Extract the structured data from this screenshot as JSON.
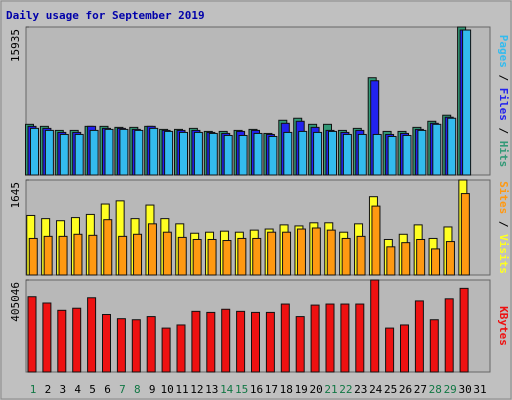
{
  "chart_data": [
    {
      "type": "bar",
      "title": "Daily usage for September 2019",
      "ylim": [
        0,
        15935
      ],
      "yticks": [
        15935
      ],
      "legend_separator": " / ",
      "series": [
        {
          "name": "Hits",
          "color": "#339977",
          "values": [
            5455,
            5237,
            4801,
            4801,
            5237,
            5237,
            5128,
            5128,
            5237,
            4910,
            4910,
            5019,
            4692,
            4692,
            4801,
            4910,
            4474,
            5892,
            6110,
            5455,
            5455,
            4801,
            5019,
            10475,
            4692,
            4692,
            5128,
            5783,
            6437,
            15935,
            0
          ]
        },
        {
          "name": "Files",
          "color": "#2222ee",
          "values": [
            5237,
            5019,
            4583,
            4583,
            5237,
            5019,
            5019,
            4910,
            5237,
            4801,
            4801,
            4801,
            4583,
            4474,
            4692,
            4801,
            4365,
            5565,
            5783,
            5128,
            4801,
            4583,
            4801,
            10148,
            4365,
            4474,
            4910,
            5565,
            6219,
            15608,
            0
          ]
        },
        {
          "name": "Pages",
          "color": "#33bbee",
          "values": [
            5019,
            4801,
            4365,
            4365,
            4801,
            4910,
            4910,
            4801,
            5019,
            4692,
            4583,
            4583,
            4474,
            4256,
            4256,
            4474,
            4147,
            4583,
            4692,
            4583,
            4692,
            4365,
            4365,
            4365,
            4147,
            4256,
            4801,
            5456,
            6110,
            15608,
            0
          ]
        }
      ]
    },
    {
      "type": "bar",
      "ylim": [
        0,
        1645
      ],
      "yticks": [
        1645
      ],
      "legend_separator": " / ",
      "series": [
        {
          "name": "Visits",
          "color": "#ffff22",
          "values": [
            1031,
            976,
            940,
            994,
            1049,
            1229,
            1284,
            976,
            1211,
            976,
            886,
            723,
            741,
            759,
            741,
            777,
            796,
            868,
            850,
            904,
            904,
            741,
            886,
            1356,
            615,
            705,
            868,
            633,
            832,
            1645,
            0
          ]
        },
        {
          "name": "Sites",
          "color": "#ff9911",
          "values": [
            633,
            669,
            669,
            705,
            687,
            958,
            669,
            705,
            886,
            741,
            651,
            615,
            615,
            597,
            633,
            633,
            741,
            741,
            796,
            814,
            777,
            633,
            669,
            1193,
            488,
            560,
            615,
            452,
            579,
            1410,
            0
          ]
        }
      ]
    },
    {
      "type": "bar",
      "ylim": [
        0,
        405046
      ],
      "yticks": [
        405046
      ],
      "categories": [
        "1",
        "2",
        "3",
        "4",
        "5",
        "6",
        "7",
        "8",
        "9",
        "10",
        "11",
        "12",
        "13",
        "14",
        "15",
        "16",
        "17",
        "18",
        "19",
        "20",
        "21",
        "22",
        "23",
        "24",
        "25",
        "26",
        "27",
        "28",
        "29",
        "30",
        "31"
      ],
      "category_colors": [
        "#117744",
        "#000000",
        "#000000",
        "#000000",
        "#000000",
        "#000000",
        "#117744",
        "#117744",
        "#000000",
        "#000000",
        "#000000",
        "#000000",
        "#000000",
        "#117744",
        "#117744",
        "#000000",
        "#000000",
        "#000000",
        "#000000",
        "#000000",
        "#117744",
        "#117744",
        "#000000",
        "#000000",
        "#000000",
        "#000000",
        "#000000",
        "#117744",
        "#117744",
        "#000000",
        "#000000"
      ],
      "series": [
        {
          "name": "KBytes",
          "color": "#ee1111",
          "values": [
            331416,
            303798,
            271577,
            280783,
            326813,
            253165,
            234753,
            230150,
            243959,
            193326,
            207135,
            266974,
            262371,
            276180,
            266974,
            262371,
            262371,
            299195,
            243959,
            294592,
            299195,
            299195,
            299195,
            405046,
            193326,
            207135,
            313004,
            230150,
            322210,
            368240,
            0
          ]
        }
      ]
    }
  ]
}
